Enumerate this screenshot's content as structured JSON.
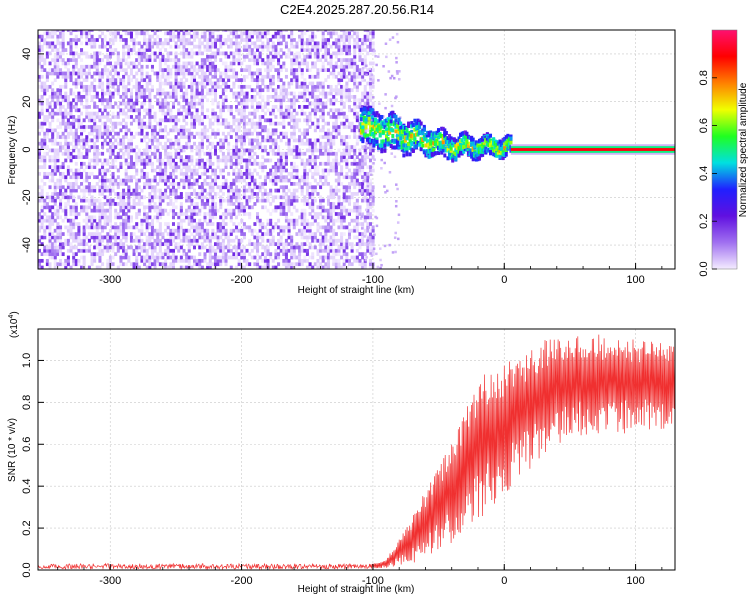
{
  "chart_data": [
    {
      "type": "heatmap",
      "title": "C2E4.2025.287.20.56.R14",
      "xlabel": "Height of straight line (km)",
      "ylabel": "Frequency (Hz)",
      "xlim": [
        -355,
        130
      ],
      "ylim": [
        -50,
        50
      ],
      "xticks": [
        "-300",
        "-200",
        "-100",
        "0",
        "100"
      ],
      "yticks": [
        "-40",
        "-20",
        "0",
        "20",
        "40"
      ],
      "colorbar": {
        "label": "Normalized spectral amplitude",
        "range": [
          0,
          1
        ],
        "ticks": [
          "0.0",
          "0.2",
          "0.4",
          "0.6",
          "0.8"
        ],
        "colors": [
          "#f4ecff",
          "#a070f0",
          "#6010e0",
          "#2020ff",
          "#00e0e0",
          "#20ff20",
          "#f0ff00",
          "#ff8000",
          "#ff0000",
          "#ff1070"
        ]
      },
      "regions": [
        {
          "name": "noise",
          "x_range": [
            -355,
            -100
          ],
          "freq_range": [
            -50,
            50
          ],
          "amplitude": 0.1
        },
        {
          "name": "transition",
          "x_range": [
            -110,
            5
          ],
          "freq_center": [
            12,
            0
          ],
          "amplitude": 0.5
        },
        {
          "name": "carrier",
          "x_range": [
            5,
            130
          ],
          "freq": 0,
          "amplitude": 0.9
        }
      ]
    },
    {
      "type": "line",
      "xlabel": "Height of straight line (km)",
      "ylabel": "SNR (10 * v/v)",
      "multiplier": "(x10",
      "multiplier_exp": "4",
      "multiplier_close": ")",
      "xlim": [
        -355,
        130
      ],
      "ylim": [
        0,
        1.15
      ],
      "xticks": [
        "-300",
        "-200",
        "-100",
        "0",
        "100"
      ],
      "yticks": [
        "0.0",
        "0.2",
        "0.4",
        "0.6",
        "0.8",
        "1.0"
      ],
      "series": [
        {
          "name": "SNR",
          "color": "#f03030",
          "envelope_x": [
            -355,
            -100,
            -90,
            -80,
            -70,
            -60,
            -50,
            -40,
            -30,
            -20,
            -10,
            0,
            10,
            20,
            30,
            40,
            60,
            80,
            100,
            130
          ],
          "envelope_upper": [
            0.03,
            0.03,
            0.05,
            0.15,
            0.25,
            0.38,
            0.5,
            0.62,
            0.78,
            0.92,
            0.95,
            0.98,
            1.02,
            1.06,
            1.1,
            1.13,
            1.13,
            1.12,
            1.1,
            1.08
          ],
          "envelope_lower": [
            0.005,
            0.005,
            0.01,
            0.02,
            0.03,
            0.05,
            0.08,
            0.12,
            0.16,
            0.22,
            0.3,
            0.36,
            0.42,
            0.48,
            0.55,
            0.6,
            0.64,
            0.64,
            0.66,
            0.68
          ]
        }
      ]
    }
  ]
}
